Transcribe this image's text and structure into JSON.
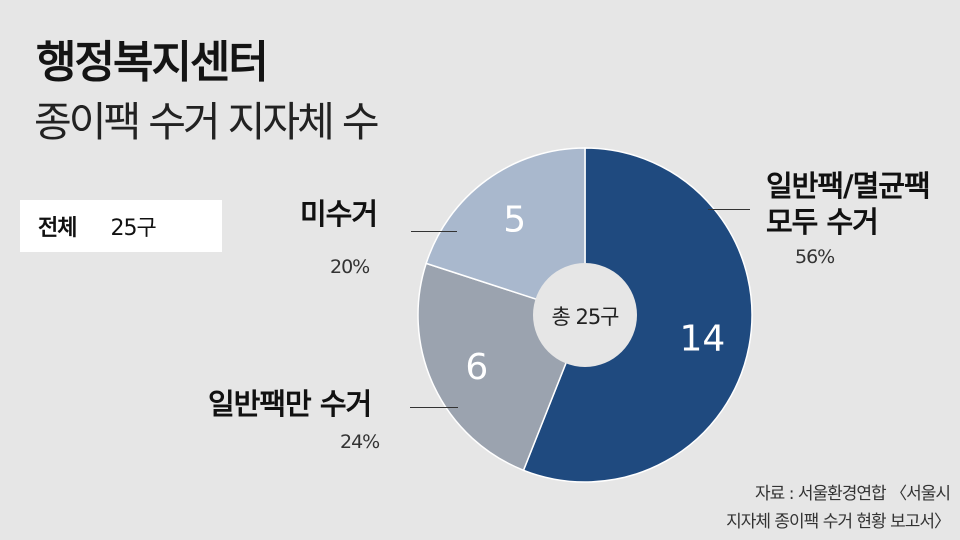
{
  "header": {
    "title": "행정복지센터",
    "subtitle": "종이팩 수거 지자체 수"
  },
  "total": {
    "label": "전체",
    "value": "25구"
  },
  "center_label": "총 25구",
  "labels": {
    "both": {
      "line1": "일반팩/멸균팩",
      "line2": "모두 수거",
      "pct": "56%"
    },
    "not_collected": {
      "line1": "미수거",
      "pct": "20%"
    },
    "general_only": {
      "line1": "일반팩만 수거",
      "pct": "24%"
    }
  },
  "source": {
    "line1": "자료 : 서울환경연합 〈서울시",
    "line2": "지자체 종이팩 수거 현황 보고서〉"
  },
  "chart_data": {
    "type": "pie",
    "donut": true,
    "total": 25,
    "unit": "구",
    "start": "12 o'clock",
    "direction": "clockwise",
    "slices": [
      {
        "label": "일반팩/멸균팩 모두 수거",
        "value": 14,
        "percent": 56,
        "color": "#1f4a7f"
      },
      {
        "label": "일반팩만 수거",
        "value": 6,
        "percent": 24,
        "color": "#9ba3af"
      },
      {
        "label": "미수거",
        "value": 5,
        "percent": 20,
        "color": "#a9b8cd"
      }
    ]
  }
}
